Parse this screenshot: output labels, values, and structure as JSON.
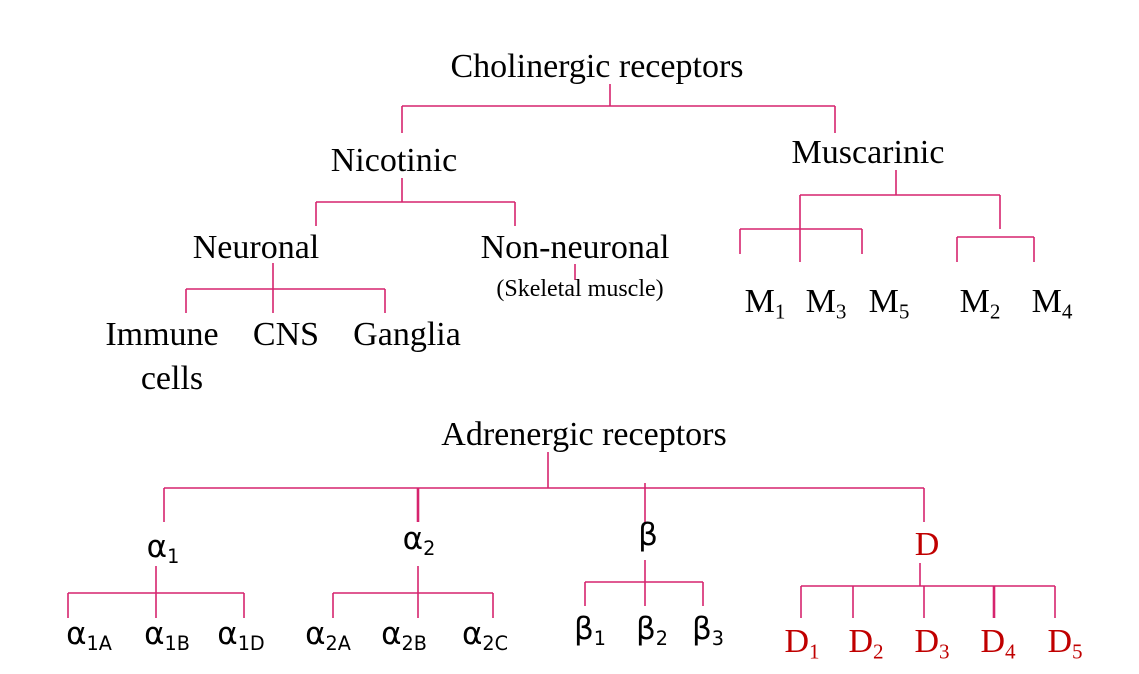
{
  "colors": {
    "connector": "#d6246e",
    "text": "#000000",
    "dopamine": "#c00000"
  },
  "cholinergic": {
    "title": "Cholinergic receptors",
    "nicotinic": {
      "label": "Nicotinic",
      "neuronal": {
        "label": "Neuronal",
        "children": [
          "Immune",
          "cells",
          "CNS",
          "Ganglia"
        ]
      },
      "non_neuronal": {
        "label": "Non-neuronal",
        "note": "(Skeletal muscle)"
      }
    },
    "muscarinic": {
      "label": "Muscarinic",
      "group_a": [
        {
          "base": "M",
          "sub": "1"
        },
        {
          "base": "M",
          "sub": "3"
        },
        {
          "base": "M",
          "sub": "5"
        }
      ],
      "group_b": [
        {
          "base": "M",
          "sub": "2"
        },
        {
          "base": "M",
          "sub": "4"
        }
      ]
    }
  },
  "adrenergic": {
    "title": "Adrenergic receptors",
    "alpha1": {
      "base": "α",
      "sub": "1",
      "children": [
        {
          "base": "α",
          "sub": "1A"
        },
        {
          "base": "α",
          "sub": "1B"
        },
        {
          "base": "α",
          "sub": "1D"
        }
      ]
    },
    "alpha2": {
      "base": "α",
      "sub": "2",
      "children": [
        {
          "base": "α",
          "sub": "2A"
        },
        {
          "base": "α",
          "sub": "2B"
        },
        {
          "base": "α",
          "sub": "2C"
        }
      ]
    },
    "beta": {
      "label": "β",
      "children": [
        {
          "base": "β",
          "sub": "1"
        },
        {
          "base": "β",
          "sub": "2"
        },
        {
          "base": "β",
          "sub": "3"
        }
      ]
    },
    "dopamine": {
      "label": "D",
      "children": [
        {
          "base": "D",
          "sub": "1"
        },
        {
          "base": "D",
          "sub": "2"
        },
        {
          "base": "D",
          "sub": "3"
        },
        {
          "base": "D",
          "sub": "4"
        },
        {
          "base": "D",
          "sub": "5"
        }
      ]
    }
  }
}
